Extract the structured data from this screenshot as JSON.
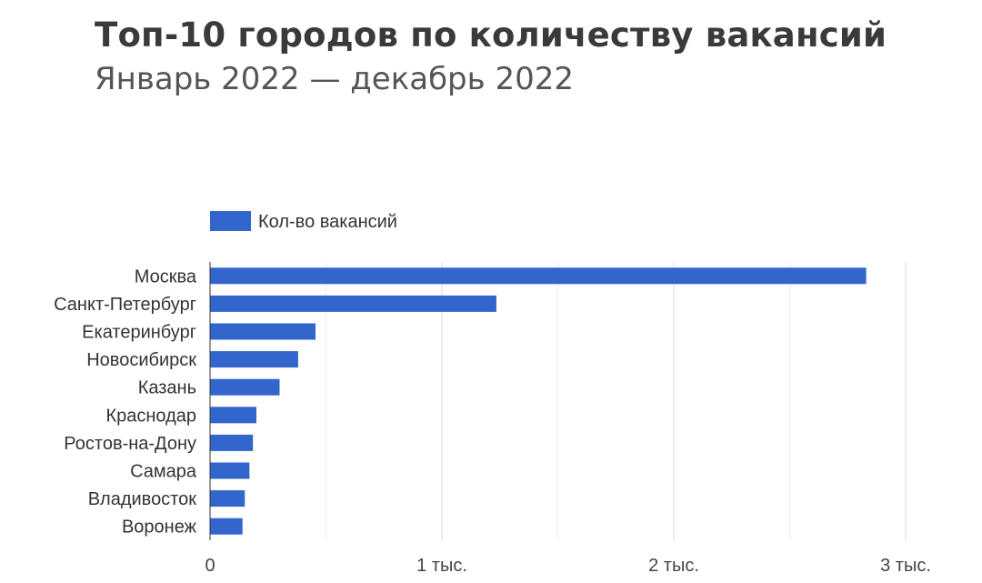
{
  "header": {
    "title": "Топ-10 городов по количеству вакансий",
    "subtitle": "Январь 2022 — декабрь 2022"
  },
  "colors": {
    "bar": "#3366cc",
    "grid": "#d9d9d9",
    "axis": "#333333",
    "text": "#333333"
  },
  "chart_data": {
    "type": "bar",
    "orientation": "horizontal",
    "title": "Топ-10 городов по количеству вакансий",
    "subtitle": "Январь 2022 — декабрь 2022",
    "categories": [
      "Москва",
      "Санкт-Петербург",
      "Екатеринбург",
      "Новосибирск",
      "Казань",
      "Краснодар",
      "Ростов-на-Дону",
      "Самара",
      "Владивосток",
      "Воронеж"
    ],
    "series": [
      {
        "name": "Кол-во вакансий",
        "values": [
          2830,
          1235,
          455,
          380,
          300,
          200,
          185,
          170,
          150,
          140
        ]
      }
    ],
    "xlim": [
      0,
      3000
    ],
    "xticks": [
      {
        "value": 0,
        "label": "0"
      },
      {
        "value": 1000,
        "label": "1 тыс."
      },
      {
        "value": 2000,
        "label": "2 тыс."
      },
      {
        "value": 3000,
        "label": "3 тыс."
      }
    ],
    "minor_gridlines": [
      500,
      1500,
      2500
    ],
    "grid": true,
    "legend_position": "top-left",
    "xlabel": "",
    "ylabel": ""
  }
}
